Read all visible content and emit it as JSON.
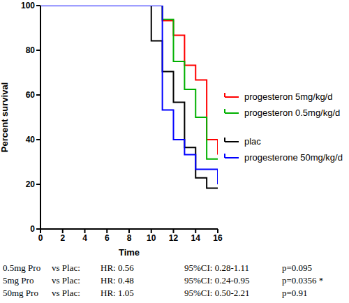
{
  "chart_data": {
    "type": "line",
    "x_label": "Time",
    "y_label": "Percent survival",
    "x": [
      0,
      10,
      11,
      12,
      13,
      14,
      15,
      16
    ],
    "xlim": [
      0,
      16
    ],
    "xticks": [
      0,
      2,
      4,
      6,
      8,
      10,
      12,
      14,
      16
    ],
    "ylim": [
      0,
      100
    ],
    "yticks": [
      0,
      20,
      40,
      60,
      80,
      100
    ],
    "line_style": "step",
    "legend": "right",
    "series": [
      {
        "name": "progesteron 5mg/kg/d",
        "color": "#ff0000",
        "values": [
          100,
          100,
          93.3,
          86.7,
          73.3,
          66.7,
          40,
          33.3
        ]
      },
      {
        "name": "progesteron 0.5mg/kg/d",
        "color": "#00b000",
        "values": [
          100,
          100,
          93.8,
          75,
          62.5,
          50,
          31.3,
          31.3
        ]
      },
      {
        "name": "plac",
        "color": "#000000",
        "values": [
          100,
          84.2,
          70.5,
          56.7,
          36.5,
          22.9,
          18.3,
          18.3
        ]
      },
      {
        "name": "progesterone 50mg/kg/d",
        "color": "#0000ff",
        "values": [
          100,
          100,
          53.3,
          40,
          33.3,
          26.7,
          26.7,
          20
        ]
      }
    ],
    "annotations": [
      [
        "0.5mg Pro",
        "vs Plac:",
        "HR: 0.56",
        "95%CI: 0.28-1.11",
        "p=0.095"
      ],
      [
        "5mg Pro",
        "vs Plac:",
        "HR: 0.48",
        "95%CI: 0.24-0.95",
        "p=0.0356 *"
      ],
      [
        "50mg Pro",
        "vs Plac:",
        "HR: 1.05",
        "95%CI: 0.50-2.21",
        "p=0.91"
      ]
    ]
  }
}
